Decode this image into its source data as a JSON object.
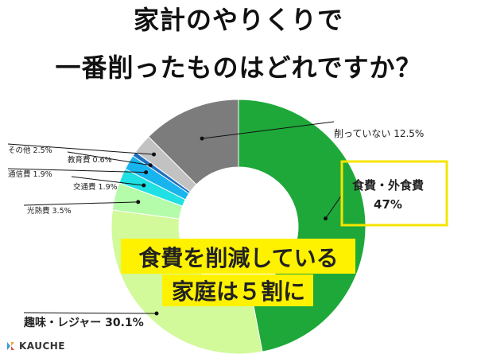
{
  "header": {
    "title_line1": "家計のやりくりで",
    "title_line2": "一番削ったものはどれですか？"
  },
  "brand": {
    "name": "KAUCHE"
  },
  "callout": {
    "line1": "食費を削減している",
    "line2": "家庭は５割に",
    "highlight_color": "#fff200"
  },
  "chart_data": {
    "type": "pie",
    "donut": true,
    "categories": [
      "食費・外食費",
      "趣味・レジャー",
      "光熱費",
      "交通費",
      "通信費",
      "教育費",
      "その他",
      "削っていない"
    ],
    "values": [
      47,
      30.1,
      3.5,
      1.9,
      1.9,
      0.6,
      2.5,
      12.5
    ],
    "labels": [
      "食費・外食費 47%",
      "趣味・レジャー 30.1%",
      "光熱費 3.5%",
      "交通費 1.9%",
      "通信費 1.9%",
      "教育費 0.6%",
      "その他 2.5%",
      "削っていない 12.5%"
    ],
    "colors": [
      "#1ea83a",
      "#d2f99a",
      "#b4fbaa",
      "#1fe0e3",
      "#18b4ee",
      "#1e6fbf",
      "#c2c2c2",
      "#7c7c7c"
    ],
    "highlight": "食費・外食費"
  }
}
